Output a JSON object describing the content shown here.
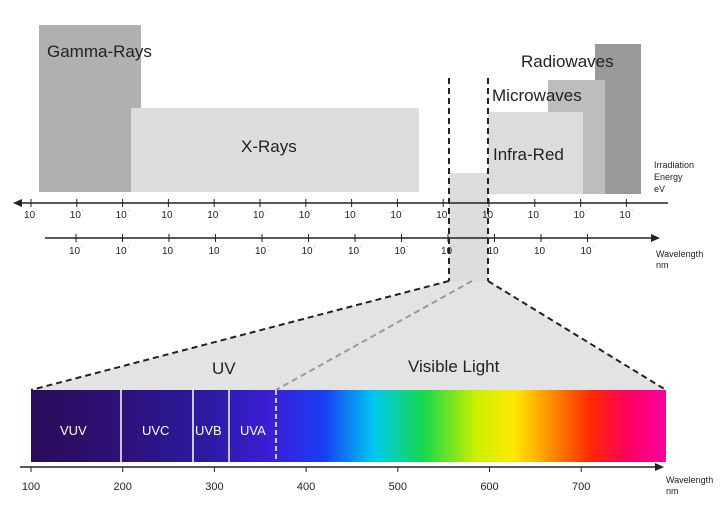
{
  "bands": {
    "gamma": "Gamma-Rays",
    "xray": "X-Rays",
    "radio": "Radiowaves",
    "micro": "Microwaves",
    "infrared": "Infra-Red"
  },
  "energy_axis": {
    "caption": [
      "Irradiation",
      "Energy",
      "eV"
    ],
    "tick_labels": [
      "10",
      "10",
      "10",
      "10",
      "10",
      "10",
      "10",
      "10",
      "10",
      "10",
      "10",
      "10",
      "10",
      "10"
    ]
  },
  "wavelength_axis": {
    "caption": [
      "Wavelength",
      "nm"
    ],
    "tick_labels": [
      "10",
      "10",
      "10",
      "10",
      "10",
      "10",
      "10",
      "10",
      "10",
      "10",
      "10",
      "10"
    ]
  },
  "detail": {
    "uv_label": "UV",
    "visible_label": "Visible Light",
    "segments": [
      "VUV",
      "UVC",
      "UVB",
      "UVA"
    ],
    "axis_caption": [
      "Wavelength",
      "nm"
    ],
    "ticks": [
      "100",
      "200",
      "300",
      "400",
      "500",
      "600",
      "700"
    ]
  },
  "colors": {
    "gamma": "#b0b0b0",
    "xray": "#dddddd",
    "radio": "#999999",
    "micro": "#bdbdbd",
    "infrared": "#dcdcdc",
    "uv_dark": "#2a0f6a"
  }
}
